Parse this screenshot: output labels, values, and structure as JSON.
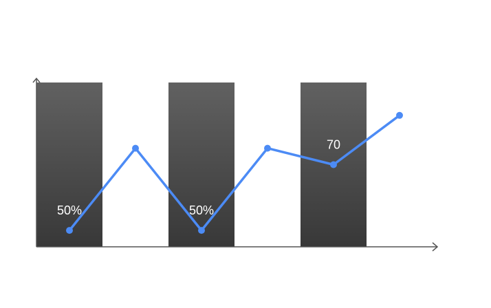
{
  "chart_data": {
    "type": "bar",
    "title": "",
    "xlabel": "",
    "ylabel": "",
    "grid": false,
    "ylim": [
      0,
      100
    ],
    "bars": [
      {
        "index": 0,
        "value": 100
      },
      {
        "index": 2,
        "value": 100
      },
      {
        "index": 4,
        "value": 100
      }
    ],
    "line": {
      "values": [
        10,
        60,
        10,
        60,
        50,
        80
      ],
      "color": "#4C8BF5"
    },
    "data_labels": [
      {
        "index": 0,
        "text": "50%"
      },
      {
        "index": 2,
        "text": "50%"
      },
      {
        "index": 4,
        "text": "70"
      }
    ],
    "colors": {
      "bar_top": "#616161",
      "bar_bottom": "#383838",
      "axis": "#555555"
    }
  }
}
